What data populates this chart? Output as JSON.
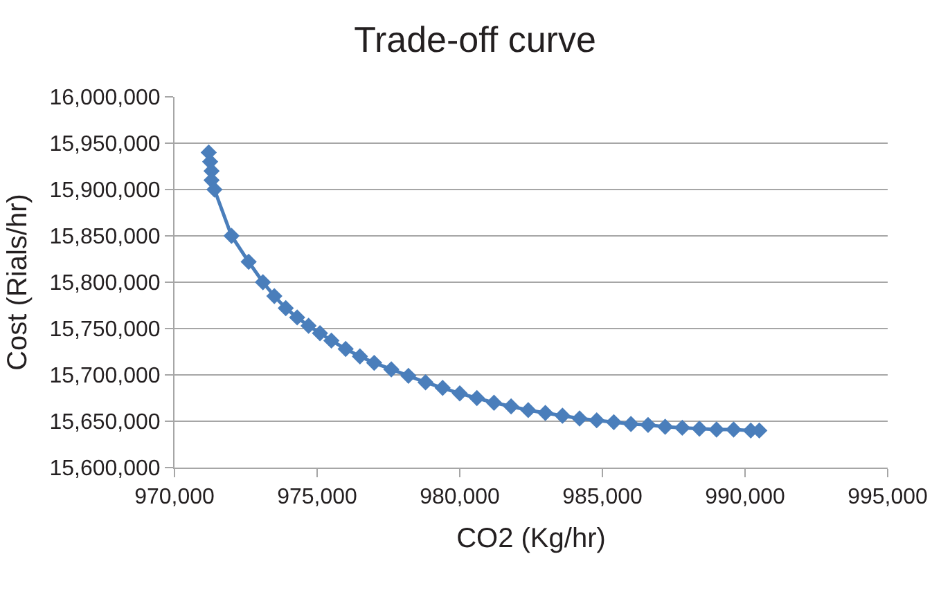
{
  "chart_data": {
    "type": "line",
    "title": "Trade-off curve",
    "xlabel": "CO2 (Kg/hr)",
    "ylabel": "Cost (Rials/hr)",
    "x": [
      971200,
      971250,
      971300,
      971300,
      971400,
      972000,
      972600,
      973100,
      973500,
      973900,
      974300,
      974700,
      975100,
      975500,
      976000,
      976500,
      977000,
      977600,
      978200,
      978800,
      979400,
      980000,
      980600,
      981200,
      981800,
      982400,
      983000,
      983600,
      984200,
      984800,
      985400,
      986000,
      986600,
      987200,
      987800,
      988400,
      989000,
      989600,
      990200,
      990500
    ],
    "series": [
      {
        "color": "#4a7ebb",
        "values": [
          15940000,
          15930000,
          15920000,
          15910000,
          15900000,
          15850000,
          15822000,
          15800000,
          15785000,
          15772000,
          15762000,
          15753000,
          15745000,
          15737000,
          15728000,
          15720000,
          15713000,
          15706000,
          15699000,
          15692000,
          15686000,
          15680000,
          15675000,
          15670000,
          15666000,
          15662000,
          15659000,
          15656000,
          15653000,
          15651000,
          15649000,
          15647000,
          15646000,
          15644000,
          15643000,
          15642000,
          15641000,
          15641000,
          15640000,
          15640000
        ]
      }
    ],
    "xlim": [
      970000,
      995000
    ],
    "xticks": [
      {
        "value": 970000,
        "label": "970,000"
      },
      {
        "value": 975000,
        "label": "975,000"
      },
      {
        "value": 980000,
        "label": "980,000"
      },
      {
        "value": 985000,
        "label": "985,000"
      },
      {
        "value": 990000,
        "label": "990,000"
      },
      {
        "value": 995000,
        "label": "995,000"
      }
    ],
    "ylim": [
      15600000,
      16000000
    ],
    "yticks": [
      {
        "value": 15600000,
        "label": "15,600,000"
      },
      {
        "value": 15650000,
        "label": "15,650,000"
      },
      {
        "value": 15700000,
        "label": "15,700,000"
      },
      {
        "value": 15750000,
        "label": "15,750,000"
      },
      {
        "value": 15800000,
        "label": "15,800,000"
      },
      {
        "value": 15850000,
        "label": "15,850,000"
      },
      {
        "value": 15900000,
        "label": "15,900,000"
      },
      {
        "value": 15950000,
        "label": "15,950,000"
      },
      {
        "value": 16000000,
        "label": "16,000,000"
      }
    ],
    "grid": "y",
    "marker": "diamond",
    "line_style": "solid"
  }
}
